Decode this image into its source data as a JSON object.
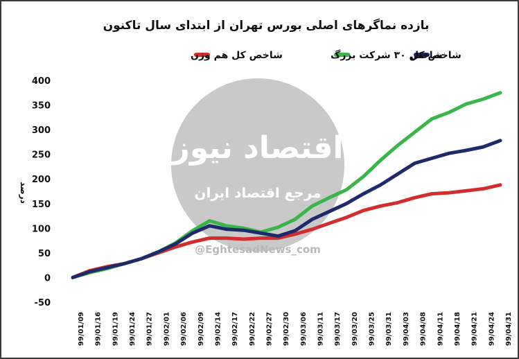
{
  "chart_data": {
    "type": "line",
    "title": "بازده نماگرهای اصلی بورس تهران از ابتدای سال تاکنون",
    "ylabel": "درصد",
    "ylim": [
      -50,
      400
    ],
    "yticks": [
      "400",
      "350",
      "300",
      "250",
      "200",
      "150",
      "100",
      "50",
      "0",
      "-50"
    ],
    "yticks_values": [
      400,
      350,
      300,
      250,
      200,
      150,
      100,
      50,
      0,
      -50
    ],
    "grid": false,
    "legend_position": "top",
    "categories": [
      "99/01/09",
      "99/01/16",
      "99/01/19",
      "99/01/24",
      "99/01/27",
      "99/02/01",
      "99/02/06",
      "99/02/09",
      "99/02/14",
      "99/02/17",
      "99/02/22",
      "99/02/27",
      "99/02/30",
      "99/03/06",
      "99/03/11",
      "99/03/17",
      "99/03/20",
      "99/03/25",
      "99/03/31",
      "99/04/03",
      "99/04/08",
      "99/04/11",
      "99/04/18",
      "99/04/21",
      "99/04/24",
      "99/04/31"
    ],
    "series": [
      {
        "name": "شاخص کل",
        "color": "#1f2a6b",
        "x": [
          0,
          1,
          2,
          3,
          4,
          5,
          6,
          7,
          8,
          9,
          10,
          11,
          12,
          13,
          14,
          15,
          16,
          17,
          18,
          19,
          20,
          21,
          22,
          23,
          24,
          25
        ],
        "values": [
          0,
          12,
          20,
          28,
          38,
          52,
          68,
          90,
          105,
          98,
          96,
          90,
          84,
          95,
          118,
          134,
          150,
          170,
          188,
          210,
          232,
          242,
          252,
          258,
          265,
          278
        ]
      },
      {
        "name": "شاخص ۳۰ شرکت بزرگ",
        "color": "#39b54a",
        "x": [
          0,
          1,
          2,
          3,
          4,
          5,
          6,
          7,
          8,
          9,
          10,
          11,
          12,
          13,
          14,
          15,
          16,
          17,
          18,
          19,
          20,
          21,
          22,
          23,
          24,
          25
        ],
        "values": [
          0,
          10,
          18,
          28,
          38,
          52,
          70,
          95,
          115,
          105,
          100,
          92,
          102,
          118,
          145,
          162,
          178,
          205,
          238,
          268,
          295,
          322,
          335,
          352,
          362,
          375
        ]
      },
      {
        "name": "شاخص کل هم وزن",
        "color": "#d22e2e",
        "x": [
          0,
          1,
          2,
          3,
          4,
          5,
          6,
          7,
          8,
          9,
          10,
          11,
          12,
          13,
          14,
          15,
          16,
          17,
          18,
          19,
          20,
          21,
          22,
          23,
          24,
          25
        ],
        "values": [
          0,
          14,
          22,
          28,
          38,
          50,
          62,
          72,
          80,
          80,
          78,
          80,
          80,
          88,
          98,
          110,
          122,
          136,
          145,
          152,
          162,
          170,
          172,
          176,
          180,
          188
        ]
      }
    ]
  },
  "watermark": {
    "brand": "اقتصاد نیوز",
    "tagline": "مرجع اقتصاد ایران",
    "url": "@EghtesadNews_com",
    "color": "#c9c9c9"
  },
  "colors": {
    "background": "#ffffff",
    "border": "#3b3b3b"
  }
}
